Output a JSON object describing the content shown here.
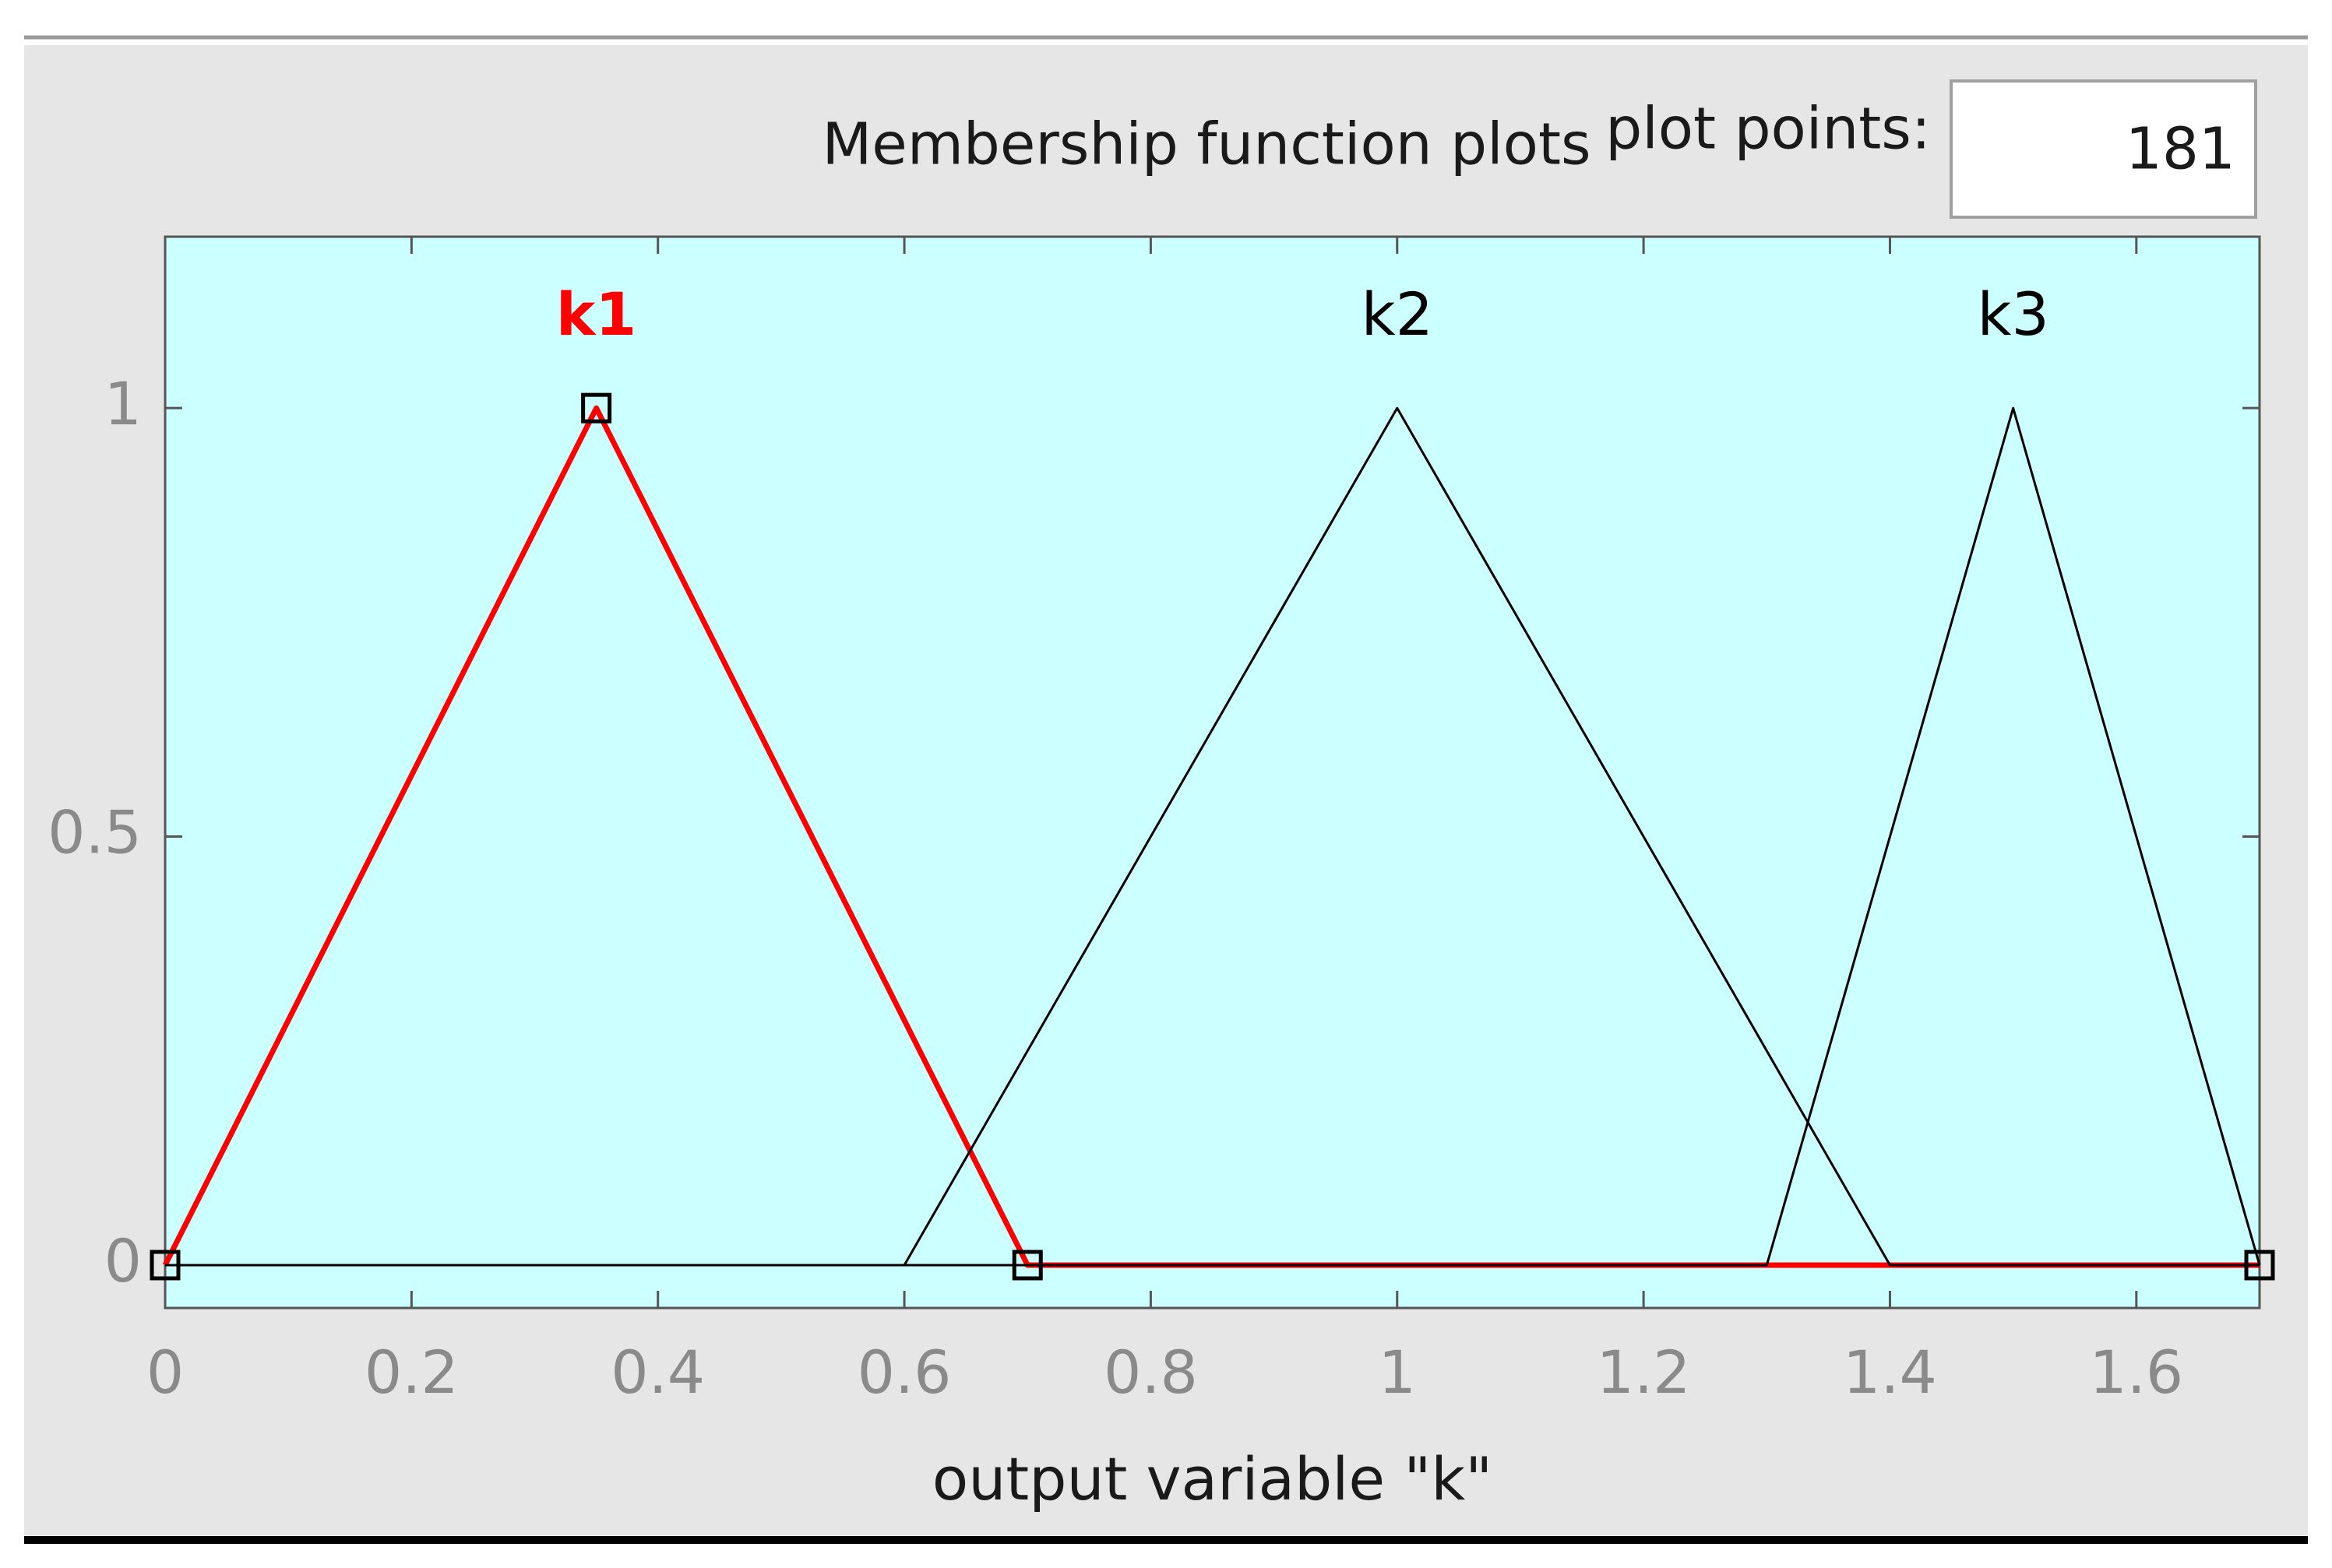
{
  "header": {
    "title": "Membership function plots",
    "plot_points_label": "plot points:",
    "plot_points_value": 181
  },
  "chart_data": {
    "type": "line",
    "xlabel": "output variable \"k\"",
    "xlim": [
      0,
      1.7
    ],
    "xticks": [
      0,
      0.2,
      0.4,
      0.6,
      0.8,
      1,
      1.2,
      1.4,
      1.6
    ],
    "ylim": [
      -0.05,
      1.2
    ],
    "yticks": [
      0,
      0.5,
      1
    ],
    "background": "#ccffff",
    "series": [
      {
        "name": "k1",
        "color": "#ff0000",
        "highlight": true,
        "x": [
          0,
          0.35,
          0.7,
          1.7
        ],
        "values": [
          0,
          1,
          0,
          0
        ]
      },
      {
        "name": "k2",
        "color": "#000000",
        "highlight": false,
        "x": [
          0,
          0.6,
          1,
          1.4,
          1.7
        ],
        "values": [
          0,
          0,
          1,
          0,
          0
        ]
      },
      {
        "name": "k3",
        "color": "#000000",
        "highlight": false,
        "x": [
          0,
          1.3,
          1.5,
          1.7
        ],
        "values": [
          0,
          0,
          1,
          0
        ]
      }
    ]
  }
}
